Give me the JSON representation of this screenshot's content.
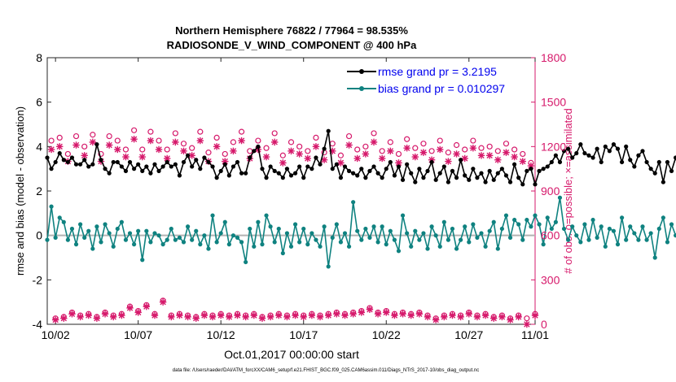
{
  "chart_data": {
    "type": "line",
    "title": "Northern Hemisphere 76822 / 77964 = 98.535%",
    "subtitle": "RADIOSONDE_V_WIND_COMPONENT @ 400 hPa",
    "xlabel": "Oct.01,2017 00:00:00 start",
    "ylabel": "rmse and bias (model - observation)",
    "y2label": "# of obs: o=possible; ×=assimilated",
    "footnote": "data file: /Users/raeder/DAI/ATM_forcXX/CAM6_setup/f.e21.FHIST_BGC.f09_025.CAM6assim.011/Diags_NTrS_2017-10/obs_diag_output.nc",
    "xlim": [
      1.5,
      31.0
    ],
    "ylim": [
      -4,
      8
    ],
    "y2lim": [
      0,
      1800
    ],
    "xticks": [
      2,
      7,
      12,
      17,
      22,
      27,
      31
    ],
    "xtick_labels": [
      "10/02",
      "10/07",
      "10/12",
      "10/17",
      "10/22",
      "10/27",
      "11/01"
    ],
    "yticks": [
      -4,
      -2,
      0,
      2,
      4,
      6,
      8
    ],
    "ytick_labels": [
      "-4",
      "-2",
      "0",
      "2",
      "4",
      "6",
      "8"
    ],
    "y2ticks": [
      0,
      300,
      600,
      900,
      1200,
      1500,
      1800
    ],
    "y2tick_labels": [
      "0",
      "300",
      "600",
      "900",
      "1200",
      "1500",
      "1800"
    ],
    "legend_position": "top-right",
    "colors": {
      "rmse": "#000000",
      "bias": "#0f8280",
      "obs": "#d6196b",
      "zero_line": "#b3b3b3",
      "legend_text": "#0000ee"
    },
    "x_start": 1.5,
    "x_step": 0.25,
    "series": [
      {
        "name": "rmse grand pr = 3.2195",
        "axis": "left",
        "values": [
          3.5,
          3.0,
          3.3,
          3.7,
          3.4,
          3.3,
          3.5,
          3.2,
          3.2,
          3.4,
          3.1,
          3.2,
          4.1,
          3.4,
          3.0,
          2.8,
          3.3,
          3.3,
          3.1,
          2.9,
          3.3,
          3.0,
          3.2,
          2.9,
          3.1,
          2.8,
          3.2,
          2.9,
          3.1,
          3.3,
          3.1,
          3.2,
          2.7,
          3.3,
          3.6,
          3.1,
          3.4,
          3.0,
          3.5,
          3.3,
          3.1,
          2.6,
          2.9,
          3.2,
          2.7,
          3.1,
          3.3,
          2.8,
          2.8,
          3.5,
          3.8,
          4.0,
          3.0,
          2.6,
          3.1,
          2.9,
          2.8,
          2.6,
          3.0,
          2.7,
          2.8,
          3.1,
          2.6,
          3.1,
          3.0,
          3.5,
          3.2,
          3.9,
          4.7,
          3.0,
          3.2,
          2.6,
          3.1,
          2.9,
          2.8,
          2.7,
          3.0,
          2.6,
          2.9,
          3.1,
          2.8,
          2.6,
          3.0,
          3.3,
          2.7,
          3.1,
          2.5,
          3.2,
          2.8,
          2.4,
          3.0,
          2.6,
          2.9,
          3.3,
          2.5,
          2.8,
          3.1,
          2.4,
          2.9,
          2.6,
          3.4,
          2.7,
          2.5,
          3.0,
          2.6,
          2.8,
          2.4,
          2.9,
          2.5,
          2.8,
          3.0,
          2.7,
          2.4,
          3.2,
          2.6,
          2.3,
          2.9,
          3.0,
          2.3,
          2.9,
          3.0,
          3.1,
          3.3,
          3.6,
          3.3,
          3.8,
          3.9,
          3.5,
          3.7,
          4.1,
          3.7,
          3.6,
          3.5,
          3.9,
          3.3,
          4.0,
          3.8,
          4.1,
          3.9,
          3.3,
          4.0,
          3.4,
          3.1,
          3.6,
          3.8,
          3.3,
          3.0,
          2.8,
          3.3,
          2.4,
          3.3,
          2.9,
          3.5,
          2.9,
          3.2,
          3.1,
          2.9,
          3.5,
          2.8,
          3.4,
          2.9,
          3.0,
          3.3,
          3.1,
          3.5,
          3.2,
          3.4,
          3.5,
          3.3,
          3.6,
          2.9,
          3.4,
          3.2,
          3.5,
          3.6,
          5.1,
          3.8,
          3.9,
          4.0,
          3.7,
          3.1,
          3.3,
          2.9,
          3.2,
          2.9,
          3.5,
          3.0,
          2.6,
          2.8,
          3.0,
          2.7,
          2.8
        ]
      },
      {
        "name": "bias grand pr = 0.010297",
        "axis": "left",
        "values": [
          -0.2,
          1.3,
          -0.1,
          0.8,
          0.6,
          -0.2,
          0.3,
          -0.4,
          0.5,
          -0.1,
          0.2,
          -0.6,
          0.4,
          -0.3,
          0.5,
          0.1,
          -0.5,
          0.3,
          0.6,
          -0.2,
          0.1,
          -0.4,
          0.2,
          -1.1,
          0.2,
          -0.3,
          0.1,
          0.0,
          -0.4,
          -0.2,
          0.3,
          -0.2,
          -0.1,
          -0.3,
          0.4,
          -0.2,
          0.2,
          -0.4,
          0.0,
          -0.6,
          0.9,
          -0.3,
          0.1,
          0.6,
          -0.4,
          0.0,
          -0.1,
          -0.3,
          -1.2,
          0.3,
          -0.5,
          0.6,
          -0.4,
          0.9,
          0.4,
          -0.3,
          0.3,
          -0.8,
          0.1,
          -0.5,
          0.5,
          -0.3,
          0.3,
          -0.4,
          0.1,
          -0.2,
          -0.5,
          0.4,
          -1.4,
          -0.1,
          0.5,
          -0.3,
          0.1,
          -0.5,
          1.5,
          0.2,
          -0.2,
          0.3,
          -0.1,
          0.4,
          -0.3,
          0.4,
          -0.4,
          0.2,
          -0.2,
          -0.7,
          0.9,
          0.1,
          -0.5,
          0.2,
          -0.2,
          0.1,
          -0.6,
          0.4,
          0.0,
          -0.5,
          0.6,
          -0.2,
          0.3,
          -0.6,
          -0.2,
          0.4,
          -0.3,
          0.5,
          -0.1,
          0.1,
          -0.5,
          0.2,
          0.6,
          -0.6,
          0.3,
          0.9,
          -0.1,
          0.7,
          0.5,
          -0.2,
          0.7,
          0.4,
          0.9,
          0.5,
          -0.4,
          0.8,
          0.3,
          0.6,
          1.7,
          0.3,
          -0.2,
          0.4,
          0.0,
          -0.3,
          0.5,
          -0.2,
          0.7,
          -0.1,
          0.4,
          -0.5,
          0.3,
          0.2,
          -0.4,
          0.8,
          -0.2,
          0.4,
          0.1,
          -0.2,
          0.4,
          -0.2,
          0.1,
          -1.0,
          0.3,
          0.8,
          -0.3,
          0.5,
          0.0,
          -0.3,
          0.4,
          -0.2,
          0.2,
          -0.4,
          0.3,
          -0.1,
          -0.5,
          0.6,
          0.2,
          -0.2,
          -0.3,
          0.1,
          -1.1,
          0.2,
          -0.4,
          0.0,
          -2.7,
          0.2,
          -0.3,
          0.1,
          0.3,
          -0.2,
          -0.5,
          0.2,
          -0.3,
          0.1,
          -0.3,
          0.0,
          -0.5,
          0.1,
          -0.1,
          1.4,
          -0.2,
          0.0,
          1.4
        ]
      },
      {
        "name": "possible obs (high)",
        "axis": "right",
        "marker": "o",
        "x": [
          1.75,
          2.25,
          2.75,
          3.25,
          3.75,
          4.25,
          4.75,
          5.25,
          5.75,
          6.25,
          6.75,
          7.25,
          7.75,
          8.25,
          8.75,
          9.25,
          9.75,
          10.25,
          10.75,
          11.25,
          11.75,
          12.25,
          12.75,
          13.25,
          13.75,
          14.25,
          14.75,
          15.25,
          15.75,
          16.25,
          16.75,
          17.25,
          17.75,
          18.25,
          18.75,
          19.25,
          19.75,
          20.25,
          20.75,
          21.25,
          21.75,
          22.25,
          22.75,
          23.25,
          23.75,
          24.25,
          24.75,
          25.25,
          25.75,
          26.25,
          26.75,
          27.25,
          27.75,
          28.25,
          28.75,
          29.25,
          29.75,
          30.25,
          30.75
        ],
        "values": [
          1240,
          1260,
          1150,
          1270,
          1200,
          1280,
          1150,
          1270,
          1240,
          1180,
          1310,
          1180,
          1300,
          1240,
          1180,
          1290,
          1220,
          1190,
          1300,
          1160,
          1260,
          1150,
          1230,
          1300,
          1170,
          1240,
          1190,
          1290,
          1140,
          1230,
          1200,
          1170,
          1260,
          1160,
          1220,
          1140,
          1270,
          1180,
          1200,
          1290,
          1170,
          1230,
          1150,
          1250,
          1190,
          1220,
          1170,
          1240,
          1160,
          1210,
          1180,
          1240,
          1190,
          1200,
          1170,
          1220,
          1180,
          1150,
          1090
        ]
      },
      {
        "name": "assimilated obs (high)",
        "axis": "right",
        "marker": "x",
        "x": [
          1.75,
          2.25,
          2.75,
          3.25,
          3.75,
          4.25,
          4.75,
          5.25,
          5.75,
          6.25,
          6.75,
          7.25,
          7.75,
          8.25,
          8.75,
          9.25,
          9.75,
          10.25,
          10.75,
          11.25,
          11.75,
          12.25,
          12.75,
          13.25,
          13.75,
          14.25,
          14.75,
          15.25,
          15.75,
          16.25,
          16.75,
          17.25,
          17.75,
          18.25,
          18.75,
          19.25,
          19.75,
          20.25,
          20.75,
          21.25,
          21.75,
          22.25,
          22.75,
          23.25,
          23.75,
          24.25,
          24.75,
          25.25,
          25.75,
          26.25,
          26.75,
          27.25,
          27.75,
          28.25,
          28.75,
          29.25,
          29.75,
          30.25,
          30.75
        ],
        "values": [
          1180,
          1200,
          1100,
          1210,
          1140,
          1230,
          1100,
          1210,
          1180,
          1130,
          1250,
          1130,
          1240,
          1180,
          1120,
          1230,
          1170,
          1140,
          1240,
          1100,
          1200,
          1100,
          1170,
          1240,
          1120,
          1180,
          1130,
          1230,
          1090,
          1170,
          1150,
          1120,
          1200,
          1110,
          1170,
          1090,
          1210,
          1120,
          1150,
          1230,
          1120,
          1170,
          1090,
          1190,
          1130,
          1160,
          1110,
          1180,
          1100,
          1150,
          1120,
          1190,
          1140,
          1140,
          1110,
          1160,
          1130,
          1100,
          1070
        ]
      },
      {
        "name": "possible obs (low)",
        "axis": "right",
        "marker": "o",
        "x": [
          2.0,
          2.5,
          3.0,
          3.5,
          4.0,
          4.5,
          5.0,
          5.5,
          6.0,
          6.5,
          7.0,
          7.5,
          8.0,
          8.5,
          9.0,
          9.5,
          10.0,
          10.5,
          11.0,
          11.5,
          12.0,
          12.5,
          13.0,
          13.5,
          14.0,
          14.5,
          15.0,
          15.5,
          16.0,
          16.5,
          17.0,
          17.5,
          18.0,
          18.5,
          19.0,
          19.5,
          20.0,
          20.5,
          21.0,
          21.5,
          22.0,
          22.5,
          23.0,
          23.5,
          24.0,
          24.5,
          25.0,
          25.5,
          26.0,
          26.5,
          27.0,
          27.5,
          28.0,
          28.5,
          29.0,
          29.5,
          30.0,
          30.5,
          31.0
        ],
        "values": [
          40,
          50,
          80,
          60,
          70,
          50,
          80,
          60,
          70,
          120,
          90,
          130,
          70,
          160,
          60,
          70,
          60,
          50,
          70,
          60,
          70,
          60,
          70,
          60,
          70,
          50,
          60,
          70,
          60,
          70,
          60,
          70,
          60,
          70,
          80,
          70,
          80,
          90,
          110,
          80,
          90,
          70,
          80,
          70,
          80,
          60,
          40,
          60,
          70,
          60,
          80,
          60,
          70,
          50,
          60,
          40,
          60,
          40,
          70
        ]
      },
      {
        "name": "assimilated obs (low)",
        "axis": "right",
        "marker": "x",
        "x": [
          2.0,
          2.5,
          3.0,
          3.5,
          4.0,
          4.5,
          5.0,
          5.5,
          6.0,
          6.5,
          7.0,
          7.5,
          8.0,
          8.5,
          9.0,
          9.5,
          10.0,
          10.5,
          11.0,
          11.5,
          12.0,
          12.5,
          13.0,
          13.5,
          14.0,
          14.5,
          15.0,
          15.5,
          16.0,
          16.5,
          17.0,
          17.5,
          18.0,
          18.5,
          19.0,
          19.5,
          20.0,
          20.5,
          21.0,
          21.5,
          22.0,
          22.5,
          23.0,
          23.5,
          24.0,
          24.5,
          25.0,
          25.5,
          26.0,
          26.5,
          27.0,
          27.5,
          28.0,
          28.5,
          29.0,
          29.5,
          30.0,
          30.5,
          31.0
        ],
        "values": [
          30,
          40,
          70,
          50,
          60,
          40,
          70,
          50,
          60,
          110,
          80,
          120,
          60,
          150,
          50,
          60,
          50,
          40,
          60,
          50,
          60,
          50,
          60,
          50,
          60,
          40,
          50,
          60,
          50,
          60,
          50,
          60,
          50,
          60,
          70,
          60,
          70,
          80,
          100,
          70,
          80,
          60,
          70,
          60,
          70,
          50,
          30,
          50,
          60,
          50,
          70,
          50,
          60,
          40,
          50,
          30,
          50,
          0,
          60
        ]
      }
    ]
  }
}
